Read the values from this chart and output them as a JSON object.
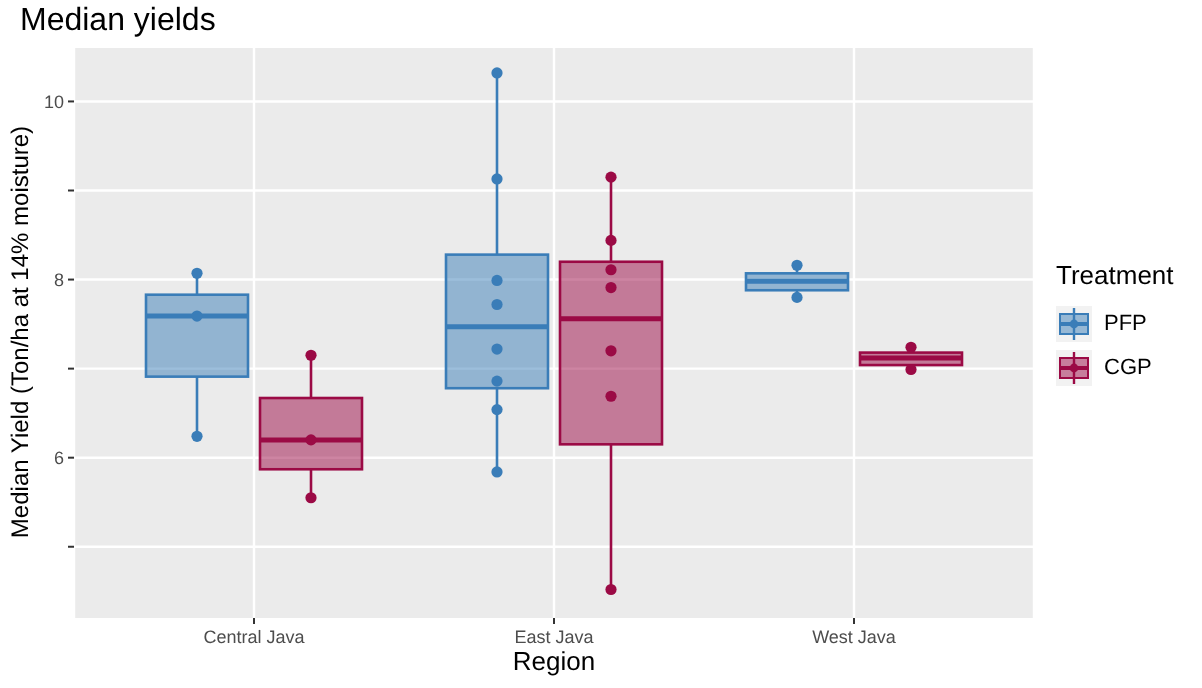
{
  "chart_data": {
    "type": "box",
    "title": "Median yields",
    "xlabel": "Region",
    "ylabel": "Median Yield (Ton/ha at 14% moisture)",
    "legend_title": "Treatment",
    "categories": [
      "Central Java",
      "East Java",
      "West Java"
    ],
    "ylim": [
      4.2,
      10.6
    ],
    "yticks": [
      {
        "value": 5,
        "label": null
      },
      6,
      {
        "value": 7,
        "label": null
      },
      8,
      {
        "value": 9,
        "label": null
      },
      10
    ],
    "grid": true,
    "legend": "right",
    "series": [
      {
        "name": "PFP",
        "type": "box",
        "color": "#3a7db8",
        "boxes": [
          {
            "low": 6.24,
            "q1": 6.91,
            "median": 7.59,
            "q3": 7.83,
            "high": 8.07
          },
          {
            "low": 5.84,
            "q1": 6.78,
            "median": 7.47,
            "q3": 8.28,
            "high": 10.32
          },
          {
            "low": 7.8,
            "q1": 7.88,
            "median": 7.98,
            "q3": 8.07,
            "high": 8.16
          }
        ]
      },
      {
        "name": "CGP",
        "type": "box",
        "color": "#9b0a45",
        "boxes": [
          {
            "low": 5.55,
            "q1": 5.87,
            "median": 6.2,
            "q3": 6.67,
            "high": 7.15
          },
          {
            "low": 4.52,
            "q1": 6.15,
            "median": 7.56,
            "q3": 8.2,
            "high": 9.15
          },
          {
            "low": 6.99,
            "q1": 7.04,
            "median": 7.12,
            "q3": 7.18,
            "high": 7.24
          }
        ]
      },
      {
        "type": "scatter",
        "color": "#3a7db8",
        "x": [
          "Central Java",
          "Central Java",
          "Central Java",
          "East Java",
          "East Java",
          "East Java",
          "East Java",
          "East Java",
          "East Java",
          "East Java",
          "East Java",
          "West Java",
          "West Java"
        ],
        "values": [
          8.07,
          7.59,
          6.24,
          10.32,
          9.13,
          7.99,
          7.72,
          7.22,
          6.86,
          6.54,
          5.84,
          8.16,
          7.8
        ]
      },
      {
        "type": "scatter",
        "color": "#9b0a45",
        "x": [
          "Central Java",
          "Central Java",
          "Central Java",
          "East Java",
          "East Java",
          "East Java",
          "East Java",
          "East Java",
          "East Java",
          "East Java",
          "West Java",
          "West Java"
        ],
        "values": [
          7.15,
          6.2,
          5.55,
          9.15,
          8.44,
          8.11,
          7.91,
          7.2,
          6.69,
          4.52,
          7.24,
          6.99
        ]
      }
    ]
  }
}
